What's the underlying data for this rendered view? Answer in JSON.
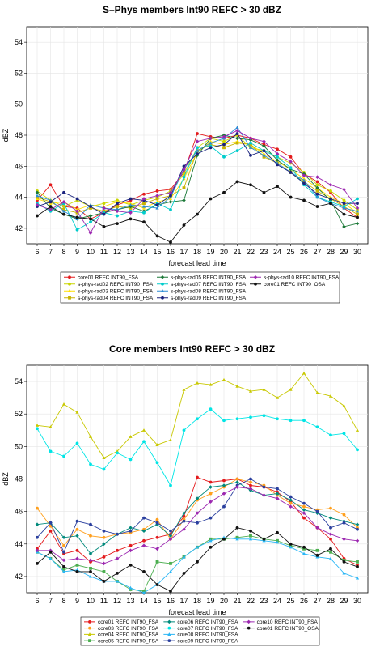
{
  "chart_data": [
    {
      "type": "line",
      "title": "S–Phys members Int90 REFC > 30 dBZ",
      "xlabel": "forecast lead time",
      "ylabel": "dBZ",
      "x": [
        6,
        7,
        8,
        9,
        10,
        11,
        12,
        13,
        14,
        15,
        16,
        17,
        18,
        19,
        20,
        21,
        22,
        23,
        24,
        25,
        26,
        27,
        28,
        29,
        30
      ],
      "xticks": [
        "6",
        "7",
        "8",
        "9",
        "10",
        "11",
        "12",
        "13",
        "14",
        "15",
        "16",
        "17",
        "18",
        "19",
        "20",
        "21",
        "22",
        "23",
        "24",
        "25",
        "26",
        "27",
        "28",
        "29",
        "30"
      ],
      "ylim": [
        41,
        55
      ],
      "yticks": [
        "42",
        "44",
        "46",
        "48",
        "50",
        "52",
        "54"
      ],
      "grid": true,
      "legend_position": "bottom",
      "series": [
        {
          "name": "core01 REFC INT90_FSA",
          "color": "#e41a1c",
          "values": [
            43.8,
            44.8,
            43.4,
            43.3,
            42.6,
            43.0,
            43.5,
            43.8,
            44.2,
            44.4,
            44.5,
            45.6,
            48.1,
            47.9,
            47.8,
            48.0,
            47.8,
            47.4,
            47.1,
            46.6,
            45.5,
            45.0,
            44.3,
            43.3,
            42.7
          ]
        },
        {
          "name": "s-phys-rad02 REFC INT90_FSA",
          "color": "#c9d600",
          "values": [
            44.4,
            43.8,
            43.4,
            43.8,
            43.4,
            43.6,
            43.8,
            43.5,
            43.8,
            44.0,
            44.4,
            45.5,
            47.2,
            47.8,
            47.6,
            48.0,
            47.2,
            47.0,
            46.6,
            46.2,
            45.6,
            44.8,
            44.4,
            43.8,
            43.2
          ]
        },
        {
          "name": "s-phys-rad03 REFC INT90_FSA",
          "color": "#ffdf00",
          "values": [
            43.9,
            43.6,
            43.7,
            43.2,
            43.5,
            43.4,
            43.7,
            43.6,
            43.3,
            43.7,
            43.9,
            45.2,
            46.9,
            47.6,
            47.4,
            47.6,
            47.4,
            46.8,
            46.3,
            45.8,
            45.2,
            44.6,
            44.0,
            43.6,
            43.0
          ]
        },
        {
          "name": "s-phys-rad04 REFC INT90_FSA",
          "color": "#c8b400",
          "values": [
            44.0,
            43.7,
            43.2,
            43.0,
            43.3,
            43.1,
            43.4,
            43.3,
            43.6,
            43.9,
            44.1,
            44.6,
            47.0,
            47.4,
            47.2,
            47.5,
            47.4,
            46.6,
            46.2,
            45.6,
            45.0,
            44.4,
            43.9,
            43.4,
            42.9
          ]
        },
        {
          "name": "s-phys-rad05 REFC INT90_FSA",
          "color": "#1b7837",
          "values": [
            44.3,
            43.3,
            42.9,
            42.6,
            42.8,
            43.0,
            43.2,
            43.4,
            43.1,
            43.5,
            43.7,
            43.8,
            46.7,
            47.8,
            48.0,
            47.8,
            47.7,
            47.3,
            46.4,
            45.8,
            45.5,
            44.6,
            43.8,
            42.1,
            42.3
          ]
        },
        {
          "name": "s-phys-rad07 REFC INT90_FSA",
          "color": "#00cccc",
          "values": [
            43.6,
            43.1,
            43.6,
            41.9,
            42.4,
            43.0,
            42.8,
            43.1,
            43.0,
            43.6,
            43.2,
            45.3,
            47.2,
            47.3,
            46.6,
            47.0,
            47.5,
            47.0,
            46.6,
            45.9,
            44.8,
            44.0,
            43.7,
            43.4,
            43.9
          ]
        },
        {
          "name": "s-phys-rad08 REFC INT90_FSA",
          "color": "#2c8cd4",
          "values": [
            44.1,
            43.8,
            43.1,
            42.6,
            43.5,
            43.3,
            43.2,
            43.5,
            43.4,
            43.3,
            44.0,
            45.8,
            47.0,
            47.5,
            47.8,
            48.5,
            47.2,
            46.7,
            46.2,
            45.6,
            45.1,
            44.0,
            43.6,
            43.3,
            43.1
          ]
        },
        {
          "name": "s-phys-rad09 REFC INT90_FSA",
          "color": "#1a237e",
          "values": [
            43.4,
            43.7,
            44.3,
            43.9,
            43.4,
            42.9,
            43.6,
            43.9,
            43.8,
            43.5,
            44.1,
            46.0,
            46.8,
            47.2,
            47.4,
            48.1,
            46.7,
            47.0,
            46.1,
            45.6,
            44.9,
            44.2,
            43.9,
            43.6,
            43.6
          ]
        },
        {
          "name": "s-phys-rad10 REFC INT90_FSA",
          "color": "#9c27b0",
          "values": [
            43.5,
            43.2,
            43.7,
            43.1,
            41.7,
            43.3,
            43.1,
            43.0,
            43.9,
            44.1,
            44.3,
            45.8,
            47.6,
            47.8,
            47.9,
            48.3,
            47.8,
            47.6,
            46.8,
            46.3,
            45.4,
            45.3,
            44.8,
            44.5,
            43.3
          ]
        },
        {
          "name": "core01 REFC INT90_OSA",
          "color": "#111111",
          "values": [
            42.8,
            43.4,
            42.9,
            42.7,
            42.6,
            42.1,
            42.3,
            42.6,
            42.4,
            41.5,
            41.1,
            42.2,
            42.9,
            43.9,
            44.3,
            45.0,
            44.8,
            44.3,
            44.7,
            44.0,
            43.8,
            43.4,
            43.6,
            42.9,
            42.7
          ]
        }
      ],
      "legend_lines": [
        [
          "core01 REFC INT90_FSA",
          "s-phys-rad05 REFC INT90_FSA",
          "s-phys-rad10 REFC INT90_FSA"
        ],
        [
          "s-phys-rad02 REFC INT90_FSA",
          "s-phys-rad07 REFC INT90_FSA",
          "core01 REFC INT90_OSA"
        ],
        [
          "s-phys-rad03 REFC INT90_FSA",
          "s-phys-rad08 REFC INT90_FSA"
        ],
        [
          "s-phys-rad04 REFC INT90_FSA",
          "s-phys-rad09 REFC INT90_FSA"
        ]
      ]
    },
    {
      "type": "line",
      "title": "Core members Int90 REFC > 30 dBZ",
      "xlabel": "forecast lead time",
      "ylabel": "dBZ",
      "x": [
        6,
        7,
        8,
        9,
        10,
        11,
        12,
        13,
        14,
        15,
        16,
        17,
        18,
        19,
        20,
        21,
        22,
        23,
        24,
        25,
        26,
        27,
        28,
        29,
        30
      ],
      "xticks": [
        "6",
        "7",
        "8",
        "9",
        "10",
        "11",
        "12",
        "13",
        "14",
        "15",
        "16",
        "17",
        "18",
        "19",
        "20",
        "21",
        "22",
        "23",
        "24",
        "25",
        "26",
        "27",
        "28",
        "29",
        "30"
      ],
      "ylim": [
        41,
        55
      ],
      "yticks": [
        "42",
        "44",
        "46",
        "48",
        "50",
        "52",
        "54"
      ],
      "grid": true,
      "legend_position": "bottom",
      "series": [
        {
          "name": "core01 REFC INT90_FSA",
          "color": "#e41a1c",
          "values": [
            43.7,
            44.8,
            43.4,
            43.6,
            42.9,
            43.2,
            43.6,
            43.9,
            44.2,
            44.4,
            44.6,
            45.7,
            48.1,
            47.8,
            47.9,
            48.0,
            47.6,
            47.5,
            47.2,
            46.6,
            45.6,
            45.0,
            44.3,
            43.1,
            42.7
          ]
        },
        {
          "name": "core03 REFC INT90_FSA",
          "color": "#ff9f1c",
          "values": [
            46.2,
            45.1,
            43.9,
            44.9,
            44.5,
            44.4,
            44.6,
            44.7,
            44.9,
            45.5,
            44.3,
            45.5,
            46.7,
            47.1,
            47.5,
            48.0,
            47.8,
            47.6,
            47.0,
            46.5,
            46.3,
            46.1,
            46.2,
            45.8,
            45.0
          ]
        },
        {
          "name": "core04 REFC INT90_FSA",
          "color": "#c8c800",
          "values": [
            51.3,
            51.2,
            52.6,
            52.1,
            50.6,
            49.3,
            49.7,
            50.6,
            51.0,
            50.1,
            50.4,
            53.5,
            53.9,
            53.8,
            54.1,
            53.7,
            53.4,
            53.5,
            53.0,
            53.5,
            54.5,
            53.3,
            53.1,
            52.5,
            51.0
          ]
        },
        {
          "name": "core05 REFC INT90_FSA",
          "color": "#4caf50",
          "values": [
            43.5,
            43.1,
            42.4,
            42.7,
            42.5,
            42.3,
            41.7,
            41.2,
            41.1,
            42.9,
            42.8,
            43.2,
            43.8,
            44.3,
            44.3,
            44.4,
            44.5,
            44.3,
            44.2,
            43.9,
            43.7,
            43.6,
            43.5,
            43.0,
            42.9
          ]
        },
        {
          "name": "core06 REFC INT90_FSA",
          "color": "#00897b",
          "values": [
            45.2,
            45.3,
            44.4,
            44.5,
            43.4,
            44.0,
            44.6,
            45.0,
            44.8,
            45.2,
            44.5,
            45.9,
            46.8,
            47.5,
            47.6,
            47.8,
            47.3,
            47.0,
            47.1,
            46.7,
            46.1,
            45.9,
            45.6,
            45.4,
            45.2
          ]
        },
        {
          "name": "core07 REFC INT90_FSA",
          "color": "#00e5e5",
          "values": [
            51.1,
            49.7,
            49.4,
            50.2,
            48.9,
            48.6,
            49.6,
            49.2,
            50.3,
            49.0,
            47.6,
            51.0,
            51.7,
            52.3,
            51.6,
            51.7,
            51.8,
            51.9,
            51.7,
            51.6,
            51.6,
            51.2,
            50.7,
            50.8,
            49.8
          ]
        },
        {
          "name": "core08 REFC INT90_FSA",
          "color": "#29b6f6",
          "values": [
            43.5,
            43.1,
            42.3,
            42.4,
            42.0,
            41.7,
            41.7,
            41.3,
            41.0,
            41.5,
            42.3,
            43.2,
            43.8,
            44.2,
            44.4,
            44.3,
            44.3,
            44.2,
            44.1,
            43.8,
            43.4,
            43.2,
            43.1,
            42.2,
            41.9
          ]
        },
        {
          "name": "core09 REFC INT90_FSA",
          "color": "#2a3f9e",
          "values": [
            44.4,
            45.3,
            43.5,
            45.4,
            45.2,
            44.8,
            44.6,
            44.8,
            45.6,
            45.3,
            44.8,
            45.4,
            45.3,
            45.6,
            46.3,
            47.6,
            48.0,
            47.5,
            47.4,
            46.9,
            46.5,
            46.0,
            45.0,
            45.3,
            44.9
          ]
        },
        {
          "name": "core10 REFC INT90_FSA",
          "color": "#9c27b0",
          "values": [
            43.6,
            43.6,
            43.0,
            43.1,
            43.0,
            42.8,
            43.1,
            43.6,
            43.9,
            43.7,
            44.3,
            44.9,
            45.9,
            46.6,
            47.1,
            47.5,
            47.4,
            47.0,
            46.8,
            46.3,
            45.9,
            45.0,
            44.6,
            44.3,
            44.2
          ]
        },
        {
          "name": "core01 REFC INT90_OSA",
          "color": "#111111",
          "values": [
            42.8,
            43.5,
            42.6,
            42.3,
            42.3,
            41.7,
            42.2,
            42.7,
            42.3,
            41.5,
            41.1,
            42.2,
            42.9,
            43.8,
            44.3,
            45.0,
            44.8,
            44.3,
            44.7,
            44.0,
            43.8,
            43.3,
            43.7,
            42.9,
            42.6
          ]
        }
      ],
      "legend_lines": [
        [
          "core01 REFC INT90_FSA",
          "core06 REFC INT90_FSA",
          "core10 REFC INT90_FSA"
        ],
        [
          "core03 REFC INT90_FSA",
          "core07 REFC INT90_FSA",
          "core01 REFC INT90_OSA"
        ],
        [
          "core04 REFC INT90_FSA",
          "core08 REFC INT90_FSA"
        ],
        [
          "core05 REFC INT90_FSA",
          "core09 REFC INT90_FSA"
        ]
      ]
    }
  ]
}
